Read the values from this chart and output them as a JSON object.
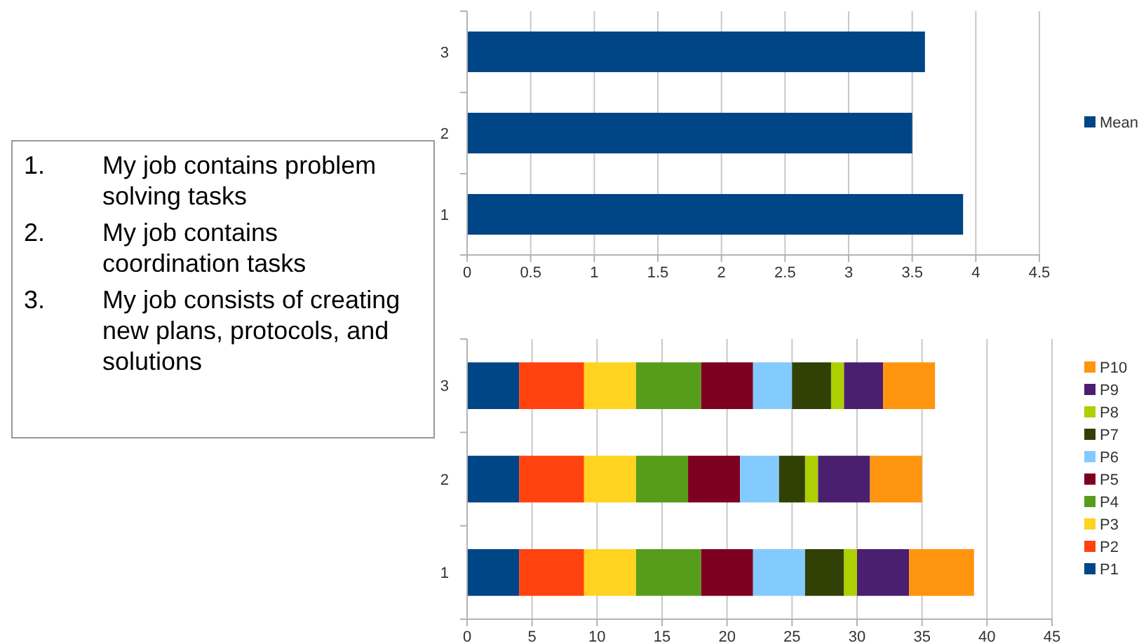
{
  "chart_data": [
    {
      "type": "bar",
      "orientation": "horizontal",
      "categories": [
        "3",
        "2",
        "1"
      ],
      "series": [
        {
          "name": "Mean",
          "color": "#004586",
          "values": [
            3.6,
            3.5,
            3.9
          ]
        }
      ],
      "xlim": [
        0,
        4.5
      ],
      "xticks": [
        0,
        0.5,
        1,
        1.5,
        2,
        2.5,
        3,
        3.5,
        4,
        4.5
      ],
      "grid": "x",
      "legend": "right"
    },
    {
      "type": "bar",
      "orientation": "horizontal",
      "stacked": true,
      "categories": [
        "3",
        "2",
        "1"
      ],
      "series": [
        {
          "name": "P1",
          "color": "#004586",
          "values": [
            4,
            4,
            4
          ]
        },
        {
          "name": "P2",
          "color": "#ff420e",
          "values": [
            5,
            5,
            5
          ]
        },
        {
          "name": "P3",
          "color": "#ffd320",
          "values": [
            4,
            4,
            4
          ]
        },
        {
          "name": "P4",
          "color": "#579d1c",
          "values": [
            5,
            4,
            5
          ]
        },
        {
          "name": "P5",
          "color": "#7e0021",
          "values": [
            4,
            4,
            4
          ]
        },
        {
          "name": "P6",
          "color": "#83caff",
          "values": [
            3,
            3,
            4
          ]
        },
        {
          "name": "P7",
          "color": "#314004",
          "values": [
            3,
            2,
            3
          ]
        },
        {
          "name": "P8",
          "color": "#aecf00",
          "values": [
            1,
            1,
            1
          ]
        },
        {
          "name": "P9",
          "color": "#4b1f6f",
          "values": [
            3,
            4,
            4
          ]
        },
        {
          "name": "P10",
          "color": "#ff950e",
          "values": [
            4,
            4,
            5
          ]
        }
      ],
      "xlim": [
        0,
        45
      ],
      "xticks": [
        0,
        5,
        10,
        15,
        20,
        25,
        30,
        35,
        40,
        45
      ],
      "grid": "x",
      "legend": "right"
    },
    {
      "type": "other",
      "annotations": [
        "1.\tMy job contains problem solving tasks",
        "2.\tMy job contains coordination tasks",
        "3.\tMy job consists of creating new plans, protocols, and solutions"
      ]
    }
  ]
}
